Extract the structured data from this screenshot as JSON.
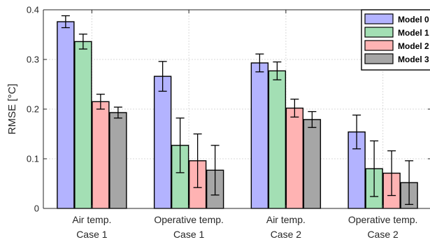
{
  "chart_data": {
    "type": "bar",
    "ylabel": "RMSE [°C]",
    "ylim": [
      0,
      0.4
    ],
    "yticks": [
      "0",
      "0.1",
      "0.2",
      "0.3",
      "0.4"
    ],
    "grid": true,
    "legend_position": "top-right",
    "categories": [
      [
        "Air temp.",
        "Case 1"
      ],
      [
        "Operative temp.",
        "Case 1"
      ],
      [
        "Air temp.",
        "Case 2"
      ],
      [
        "Operative temp.",
        "Case 2"
      ]
    ],
    "series": [
      {
        "name": "Model 0",
        "color": "#b3b3ff",
        "values": [
          0.376,
          0.266,
          0.293,
          0.154
        ],
        "errors": [
          0.012,
          0.03,
          0.018,
          0.034
        ]
      },
      {
        "name": "Model 1",
        "color": "#a3dfb4",
        "values": [
          0.336,
          0.127,
          0.277,
          0.08
        ],
        "errors": [
          0.015,
          0.055,
          0.018,
          0.056
        ]
      },
      {
        "name": "Model 2",
        "color": "#ffb3b3",
        "values": [
          0.215,
          0.096,
          0.202,
          0.071
        ],
        "errors": [
          0.015,
          0.054,
          0.018,
          0.045
        ]
      },
      {
        "name": "Model 3",
        "color": "#a6a6a6",
        "values": [
          0.193,
          0.077,
          0.179,
          0.052
        ],
        "errors": [
          0.011,
          0.05,
          0.016,
          0.044
        ]
      }
    ]
  }
}
